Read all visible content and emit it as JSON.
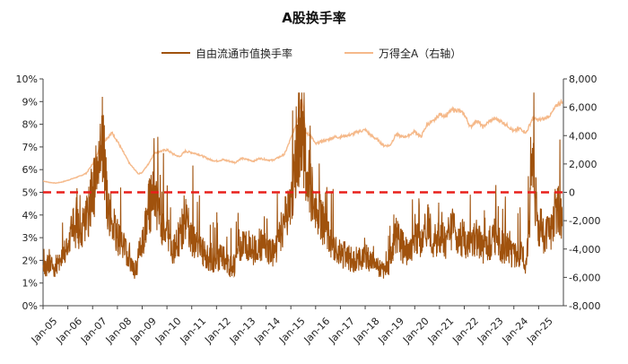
{
  "chart_data": {
    "type": "line",
    "title": "A股换手率",
    "x": [
      "Jan-05",
      "Jan-06",
      "Jan-07",
      "Jan-08",
      "Jan-09",
      "Jan-10",
      "Jan-11",
      "Jan-12",
      "Jan-13",
      "Jan-14",
      "Jan-15",
      "Jan-16",
      "Jan-17",
      "Jan-18",
      "Jan-19",
      "Jan-20",
      "Jan-21",
      "Jan-22",
      "Jan-23",
      "Jan-24",
      "Jan-25"
    ],
    "y_left": {
      "ylim": [
        0,
        10
      ],
      "ticks": [
        "0%",
        "1%",
        "2%",
        "3%",
        "4%",
        "5%",
        "6%",
        "7%",
        "8%",
        "9%",
        "10%"
      ]
    },
    "y_right": {
      "ylim": [
        -8000,
        8000
      ],
      "ticks": [
        "-8,000",
        "-6,000",
        "-4,000",
        "-2,000",
        "0",
        "2,000",
        "4,000",
        "6,000",
        "8,000"
      ]
    },
    "reference_line": {
      "axis": "left",
      "value": 5,
      "color": "#e8201c",
      "style": "dashed"
    },
    "series": [
      {
        "name": "自由流通市值换手率",
        "axis": "left",
        "color": "#a0520d",
        "values": [
          [
            2005.0,
            1.4
          ],
          [
            2005.25,
            2.0
          ],
          [
            2005.5,
            1.6
          ],
          [
            2005.75,
            2.2
          ],
          [
            2006.0,
            2.6
          ],
          [
            2006.25,
            3.6
          ],
          [
            2006.5,
            3.2
          ],
          [
            2006.75,
            3.8
          ],
          [
            2007.0,
            5.0
          ],
          [
            2007.25,
            6.2
          ],
          [
            2007.4,
            7.2
          ],
          [
            2007.6,
            4.5
          ],
          [
            2007.8,
            3.6
          ],
          [
            2008.0,
            3.0
          ],
          [
            2008.25,
            2.6
          ],
          [
            2008.5,
            1.8
          ],
          [
            2008.75,
            1.6
          ],
          [
            2009.0,
            2.8
          ],
          [
            2009.25,
            4.3
          ],
          [
            2009.5,
            4.8
          ],
          [
            2009.75,
            3.5
          ],
          [
            2010.0,
            3.2
          ],
          [
            2010.25,
            2.5
          ],
          [
            2010.5,
            3.0
          ],
          [
            2010.75,
            3.8
          ],
          [
            2011.0,
            3.0
          ],
          [
            2011.25,
            2.6
          ],
          [
            2011.5,
            2.3
          ],
          [
            2011.75,
            2.0
          ],
          [
            2012.0,
            2.0
          ],
          [
            2012.25,
            2.3
          ],
          [
            2012.5,
            1.7
          ],
          [
            2012.75,
            1.8
          ],
          [
            2013.0,
            2.6
          ],
          [
            2013.25,
            2.7
          ],
          [
            2013.5,
            2.4
          ],
          [
            2013.75,
            2.7
          ],
          [
            2014.0,
            2.5
          ],
          [
            2014.25,
            2.3
          ],
          [
            2014.5,
            2.8
          ],
          [
            2014.75,
            3.8
          ],
          [
            2015.0,
            4.6
          ],
          [
            2015.25,
            6.4
          ],
          [
            2015.45,
            7.8
          ],
          [
            2015.6,
            6.2
          ],
          [
            2015.8,
            5.2
          ],
          [
            2016.0,
            4.2
          ],
          [
            2016.25,
            3.8
          ],
          [
            2016.5,
            3.1
          ],
          [
            2016.75,
            2.7
          ],
          [
            2017.0,
            2.3
          ],
          [
            2017.25,
            2.2
          ],
          [
            2017.5,
            2.0
          ],
          [
            2017.75,
            2.1
          ],
          [
            2018.0,
            2.2
          ],
          [
            2018.25,
            1.9
          ],
          [
            2018.5,
            1.7
          ],
          [
            2018.75,
            1.5
          ],
          [
            2019.0,
            1.8
          ],
          [
            2019.25,
            3.2
          ],
          [
            2019.5,
            2.6
          ],
          [
            2019.75,
            2.2
          ],
          [
            2020.0,
            3.0
          ],
          [
            2020.25,
            2.7
          ],
          [
            2020.5,
            3.6
          ],
          [
            2020.75,
            2.9
          ],
          [
            2021.0,
            3.0
          ],
          [
            2021.25,
            2.8
          ],
          [
            2021.5,
            3.4
          ],
          [
            2021.75,
            3.0
          ],
          [
            2022.0,
            2.9
          ],
          [
            2022.25,
            2.6
          ],
          [
            2022.5,
            3.0
          ],
          [
            2022.75,
            2.5
          ],
          [
            2023.0,
            2.7
          ],
          [
            2023.25,
            3.1
          ],
          [
            2023.5,
            2.6
          ],
          [
            2023.75,
            2.4
          ],
          [
            2024.0,
            2.2
          ],
          [
            2024.25,
            2.3
          ],
          [
            2024.5,
            1.9
          ],
          [
            2024.75,
            6.0
          ],
          [
            2025.0,
            3.6
          ],
          [
            2025.25,
            3.0
          ],
          [
            2025.5,
            3.4
          ],
          [
            2025.75,
            4.5
          ],
          [
            2025.95,
            3.5
          ]
        ]
      },
      {
        "name": "万得全A（右轴）",
        "axis": "right",
        "color": "#f5b98a",
        "values": [
          [
            2005.0,
            800
          ],
          [
            2005.25,
            700
          ],
          [
            2005.5,
            650
          ],
          [
            2005.75,
            720
          ],
          [
            2006.0,
            850
          ],
          [
            2006.25,
            1000
          ],
          [
            2006.5,
            1150
          ],
          [
            2006.75,
            1350
          ],
          [
            2007.0,
            2000
          ],
          [
            2007.25,
            3000
          ],
          [
            2007.5,
            3700
          ],
          [
            2007.8,
            4200
          ],
          [
            2008.0,
            3600
          ],
          [
            2008.25,
            2800
          ],
          [
            2008.5,
            2000
          ],
          [
            2008.85,
            1300
          ],
          [
            2009.0,
            1400
          ],
          [
            2009.25,
            2000
          ],
          [
            2009.5,
            2800
          ],
          [
            2009.75,
            2900
          ],
          [
            2010.0,
            3000
          ],
          [
            2010.25,
            2700
          ],
          [
            2010.5,
            2500
          ],
          [
            2010.75,
            2900
          ],
          [
            2011.0,
            2800
          ],
          [
            2011.25,
            2700
          ],
          [
            2011.5,
            2500
          ],
          [
            2011.75,
            2300
          ],
          [
            2012.0,
            2200
          ],
          [
            2012.25,
            2300
          ],
          [
            2012.5,
            2200
          ],
          [
            2012.75,
            2100
          ],
          [
            2013.0,
            2400
          ],
          [
            2013.25,
            2300
          ],
          [
            2013.5,
            2200
          ],
          [
            2013.75,
            2400
          ],
          [
            2014.0,
            2300
          ],
          [
            2014.25,
            2250
          ],
          [
            2014.5,
            2450
          ],
          [
            2014.75,
            2700
          ],
          [
            2015.0,
            3800
          ],
          [
            2015.25,
            5000
          ],
          [
            2015.45,
            6700
          ],
          [
            2015.6,
            4200
          ],
          [
            2015.8,
            4000
          ],
          [
            2016.0,
            3400
          ],
          [
            2016.25,
            3600
          ],
          [
            2016.5,
            3700
          ],
          [
            2016.75,
            3900
          ],
          [
            2017.0,
            3900
          ],
          [
            2017.25,
            4000
          ],
          [
            2017.5,
            4100
          ],
          [
            2017.75,
            4300
          ],
          [
            2018.0,
            4400
          ],
          [
            2018.25,
            4000
          ],
          [
            2018.5,
            3700
          ],
          [
            2018.75,
            3300
          ],
          [
            2019.0,
            3300
          ],
          [
            2019.25,
            4100
          ],
          [
            2019.5,
            3900
          ],
          [
            2019.75,
            4000
          ],
          [
            2020.0,
            4300
          ],
          [
            2020.25,
            3900
          ],
          [
            2020.5,
            4800
          ],
          [
            2020.75,
            5000
          ],
          [
            2021.0,
            5500
          ],
          [
            2021.25,
            5400
          ],
          [
            2021.5,
            5800
          ],
          [
            2021.75,
            5800
          ],
          [
            2022.0,
            5500
          ],
          [
            2022.25,
            4600
          ],
          [
            2022.5,
            5100
          ],
          [
            2022.75,
            4600
          ],
          [
            2023.0,
            5000
          ],
          [
            2023.25,
            5200
          ],
          [
            2023.5,
            5000
          ],
          [
            2023.75,
            4700
          ],
          [
            2024.0,
            4300
          ],
          [
            2024.25,
            4500
          ],
          [
            2024.5,
            4200
          ],
          [
            2024.75,
            5200
          ],
          [
            2025.0,
            5100
          ],
          [
            2025.25,
            5200
          ],
          [
            2025.5,
            5500
          ],
          [
            2025.75,
            6200
          ],
          [
            2025.95,
            6400
          ]
        ]
      }
    ]
  }
}
